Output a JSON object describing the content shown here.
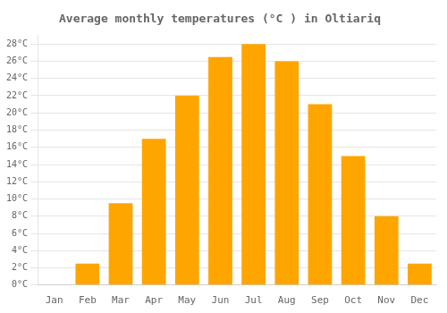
{
  "chart_data": {
    "type": "bar",
    "title": "Average monthly temperatures (°C ) in Oltiariq",
    "categories": [
      "Jan",
      "Feb",
      "Mar",
      "Apr",
      "May",
      "Jun",
      "Jul",
      "Aug",
      "Sep",
      "Oct",
      "Nov",
      "Dec"
    ],
    "values": [
      0,
      2.5,
      9.5,
      17,
      22,
      26.5,
      28,
      26,
      21,
      15,
      8,
      2.5
    ],
    "color": "#FFA500",
    "ylim": [
      0,
      29
    ],
    "yticks": [
      {
        "value": 0,
        "label": "0°C"
      },
      {
        "value": 2,
        "label": "2°C"
      },
      {
        "value": 4,
        "label": "4°C"
      },
      {
        "value": 6,
        "label": "6°C"
      },
      {
        "value": 8,
        "label": "8°C"
      },
      {
        "value": 10,
        "label": "10°C"
      },
      {
        "value": 12,
        "label": "12°C"
      },
      {
        "value": 14,
        "label": "14°C"
      },
      {
        "value": 16,
        "label": "16°C"
      },
      {
        "value": 18,
        "label": "18°C"
      },
      {
        "value": 20,
        "label": "20°C"
      },
      {
        "value": 22,
        "label": "22°C"
      },
      {
        "value": 24,
        "label": "24°C"
      },
      {
        "value": 26,
        "label": "26°C"
      },
      {
        "value": 28,
        "label": "28°C"
      }
    ],
    "grid": true
  }
}
